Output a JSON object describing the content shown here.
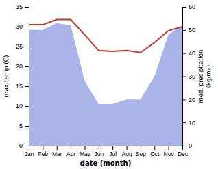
{
  "chart_data": {
    "type": "line",
    "xlabel": "date (month)",
    "ylabel": "max temp (C)",
    "y2label": "med. precipitation\n(kg/m2)",
    "categories": [
      "Jan",
      "Feb",
      "Mar",
      "Apr",
      "May",
      "Jun",
      "Jul",
      "Aug",
      "Sep",
      "Oct",
      "Nov",
      "Dec"
    ],
    "series": [
      {
        "type": "area",
        "axis": "y2",
        "color": "#aab4e8",
        "values": [
          50,
          50,
          53,
          52,
          28,
          18,
          18,
          20,
          20,
          30,
          48,
          52
        ]
      },
      {
        "type": "line",
        "color": "#c0392b",
        "values": [
          30.5,
          30.5,
          31.8,
          31.8,
          28.0,
          24.0,
          23.8,
          24.0,
          23.5,
          26.0,
          29.0,
          30.0
        ]
      }
    ],
    "ylim": [
      0,
      35
    ],
    "yticks": [
      0,
      5,
      10,
      15,
      20,
      25,
      30,
      35
    ],
    "y2lim": [
      0,
      60
    ],
    "y2ticks": [
      0,
      10,
      20,
      30,
      40,
      50,
      60
    ]
  }
}
